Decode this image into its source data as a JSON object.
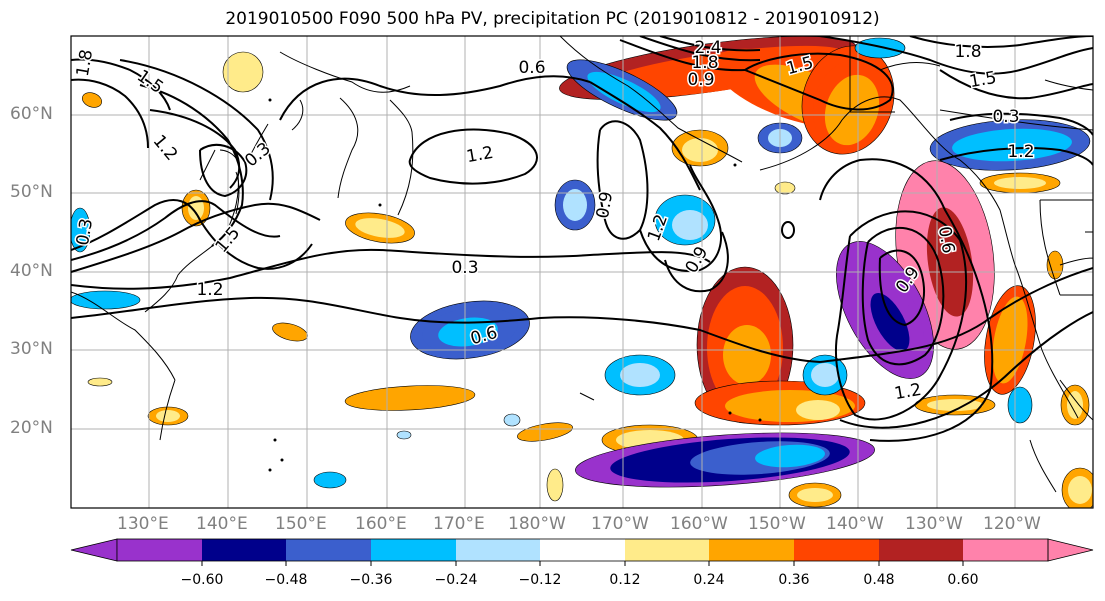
{
  "title": "2019010500 F090 500 hPa PV, precipitation PC (2019010812 - 2019010912)",
  "lat_labels": [
    "60°N",
    "50°N",
    "40°N",
    "30°N",
    "20°N"
  ],
  "lon_labels": [
    "130°E",
    "140°E",
    "150°E",
    "160°E",
    "170°E",
    "180°W",
    "170°W",
    "160°W",
    "150°W",
    "140°W",
    "130°W",
    "120°W"
  ],
  "contour_labels": [
    "1.8",
    "1.5",
    "1.2",
    "0.6",
    "2.4",
    "1.8",
    "0.9",
    "1.5",
    "1.2",
    "1.8",
    "1.5",
    "0.3",
    "1.2",
    "0.6",
    "0.9",
    "1.2",
    "0.9",
    "1.5",
    "1.2",
    "0.9",
    "0.3",
    "0.6",
    "1.2",
    "0.3",
    "0.3"
  ],
  "colorbar": {
    "ticks": [
      "−0.60",
      "−0.48",
      "−0.36",
      "−0.24",
      "−0.12",
      "0.12",
      "0.24",
      "0.36",
      "0.48",
      "0.60"
    ],
    "colors": [
      "#9932cc",
      "#00008b",
      "#3b5fcd",
      "#00bfff",
      "#b0e2ff",
      "#ffffff",
      "#ffeb8a",
      "#ffa500",
      "#ff4500",
      "#b22222",
      "#ff82ab"
    ]
  }
}
